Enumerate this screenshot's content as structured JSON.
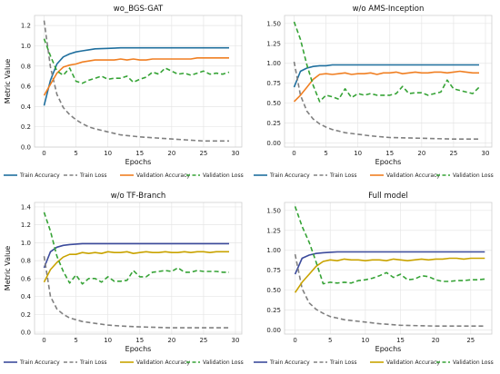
{
  "figure": {
    "legend": [
      "Train Accuracy",
      "Train Loss",
      "Validation Accuracy",
      "Validation Loss"
    ]
  },
  "chart_data": [
    {
      "type": "line",
      "title": "wo_BGS-GAT",
      "xlabel": "Epochs",
      "ylabel": "Metric Value",
      "xlim": [
        -1.5,
        31
      ],
      "ylim": [
        0.0,
        1.3
      ],
      "xticks": [
        0,
        5,
        10,
        15,
        20,
        25,
        30
      ],
      "yticks": [
        0.0,
        0.2,
        0.4,
        0.6,
        0.8,
        1.0,
        1.2
      ],
      "grid": true,
      "legend_position": "bottom",
      "colors": {
        "Train Accuracy": "#1f6f9e",
        "Train Loss": "#808080",
        "Validation Accuracy": "#f07f22",
        "Validation Loss": "#36a336"
      },
      "series": [
        {
          "name": "Train Accuracy",
          "style": "solid",
          "x": [
            0,
            1,
            2,
            3,
            4,
            5,
            6,
            7,
            8,
            10,
            12,
            15,
            20,
            25,
            29
          ],
          "y": [
            0.41,
            0.66,
            0.82,
            0.89,
            0.92,
            0.94,
            0.95,
            0.96,
            0.97,
            0.975,
            0.98,
            0.98,
            0.98,
            0.98,
            0.98
          ]
        },
        {
          "name": "Train Loss",
          "style": "dashed",
          "x": [
            0,
            1,
            2,
            3,
            4,
            5,
            6,
            7,
            8,
            10,
            12,
            15,
            20,
            25,
            29
          ],
          "y": [
            1.25,
            0.79,
            0.52,
            0.39,
            0.32,
            0.27,
            0.23,
            0.2,
            0.18,
            0.15,
            0.12,
            0.1,
            0.08,
            0.06,
            0.06
          ]
        },
        {
          "name": "Validation Accuracy",
          "style": "solid",
          "x": [
            0,
            1,
            2,
            3,
            4,
            5,
            6,
            7,
            8,
            9,
            10,
            11,
            12,
            13,
            14,
            15,
            16,
            17,
            18,
            19,
            20,
            21,
            22,
            23,
            24,
            25,
            26,
            27,
            28,
            29
          ],
          "y": [
            0.51,
            0.62,
            0.73,
            0.79,
            0.81,
            0.82,
            0.84,
            0.85,
            0.86,
            0.86,
            0.86,
            0.86,
            0.87,
            0.86,
            0.87,
            0.86,
            0.86,
            0.87,
            0.87,
            0.87,
            0.87,
            0.87,
            0.87,
            0.87,
            0.88,
            0.88,
            0.88,
            0.88,
            0.88,
            0.88
          ]
        },
        {
          "name": "Validation Loss",
          "style": "dashed",
          "x": [
            0,
            1,
            2,
            3,
            4,
            5,
            6,
            7,
            8,
            9,
            10,
            11,
            12,
            13,
            14,
            15,
            16,
            17,
            18,
            19,
            20,
            21,
            22,
            23,
            24,
            25,
            26,
            27,
            28,
            29
          ],
          "y": [
            1.07,
            0.9,
            0.75,
            0.71,
            0.78,
            0.65,
            0.63,
            0.66,
            0.68,
            0.7,
            0.67,
            0.68,
            0.68,
            0.7,
            0.64,
            0.67,
            0.69,
            0.74,
            0.72,
            0.78,
            0.75,
            0.72,
            0.73,
            0.71,
            0.73,
            0.75,
            0.72,
            0.73,
            0.72,
            0.74
          ]
        }
      ]
    },
    {
      "type": "line",
      "title": "w/o AMS-Inception",
      "xlabel": "Epochs",
      "ylabel": "",
      "xlim": [
        -1.5,
        31
      ],
      "ylim": [
        -0.05,
        1.6
      ],
      "xticks": [
        0,
        5,
        10,
        15,
        20,
        25,
        30
      ],
      "yticks": [
        0.0,
        0.25,
        0.5,
        0.75,
        1.0,
        1.25,
        1.5
      ],
      "grid": true,
      "legend_position": "bottom",
      "colors": {
        "Train Accuracy": "#1f6f9e",
        "Train Loss": "#808080",
        "Validation Accuracy": "#f07f22",
        "Validation Loss": "#36a336"
      },
      "series": [
        {
          "name": "Train Accuracy",
          "style": "solid",
          "x": [
            0,
            1,
            2,
            3,
            4,
            5,
            6,
            8,
            10,
            15,
            20,
            25,
            29
          ],
          "y": [
            0.7,
            0.9,
            0.94,
            0.96,
            0.97,
            0.97,
            0.98,
            0.98,
            0.98,
            0.98,
            0.98,
            0.98,
            0.98
          ]
        },
        {
          "name": "Train Loss",
          "style": "dashed",
          "x": [
            0,
            1,
            2,
            3,
            4,
            5,
            6,
            7,
            8,
            10,
            12,
            15,
            20,
            25,
            29
          ],
          "y": [
            1.02,
            0.6,
            0.4,
            0.3,
            0.24,
            0.2,
            0.17,
            0.15,
            0.13,
            0.11,
            0.09,
            0.07,
            0.06,
            0.05,
            0.05
          ]
        },
        {
          "name": "Validation Accuracy",
          "style": "solid",
          "x": [
            0,
            1,
            2,
            3,
            4,
            5,
            6,
            7,
            8,
            9,
            10,
            11,
            12,
            13,
            14,
            15,
            16,
            17,
            18,
            19,
            20,
            21,
            22,
            23,
            24,
            25,
            26,
            27,
            28,
            29
          ],
          "y": [
            0.52,
            0.6,
            0.7,
            0.8,
            0.86,
            0.87,
            0.86,
            0.87,
            0.88,
            0.86,
            0.87,
            0.87,
            0.88,
            0.86,
            0.88,
            0.88,
            0.89,
            0.87,
            0.88,
            0.89,
            0.88,
            0.88,
            0.89,
            0.89,
            0.88,
            0.89,
            0.9,
            0.89,
            0.88,
            0.88
          ]
        },
        {
          "name": "Validation Loss",
          "style": "dashed",
          "x": [
            0,
            1,
            2,
            3,
            4,
            5,
            6,
            7,
            8,
            9,
            10,
            11,
            12,
            13,
            14,
            15,
            16,
            17,
            18,
            19,
            20,
            21,
            22,
            23,
            24,
            25,
            26,
            27,
            28,
            29
          ],
          "y": [
            1.52,
            1.3,
            0.98,
            0.72,
            0.52,
            0.6,
            0.58,
            0.55,
            0.68,
            0.57,
            0.62,
            0.6,
            0.62,
            0.6,
            0.6,
            0.6,
            0.62,
            0.71,
            0.62,
            0.63,
            0.63,
            0.6,
            0.62,
            0.64,
            0.79,
            0.68,
            0.66,
            0.64,
            0.62,
            0.7
          ]
        }
      ]
    },
    {
      "type": "line",
      "title": "w/o TF-Branch",
      "xlabel": "Epochs",
      "ylabel": "Metric Value",
      "xlim": [
        -1.5,
        31
      ],
      "ylim": [
        -0.02,
        1.45
      ],
      "xticks": [
        0,
        5,
        10,
        15,
        20,
        25,
        30
      ],
      "yticks": [
        0.0,
        0.2,
        0.4,
        0.6,
        0.8,
        1.0,
        1.2,
        1.4
      ],
      "grid": true,
      "legend_position": "bottom",
      "colors": {
        "Train Accuracy": "#3c4b9c",
        "Train Loss": "#808080",
        "Validation Accuracy": "#c9a300",
        "Validation Loss": "#36a336"
      },
      "series": [
        {
          "name": "Train Accuracy",
          "style": "solid",
          "x": [
            0,
            1,
            2,
            3,
            4,
            5,
            6,
            8,
            10,
            15,
            20,
            25,
            29
          ],
          "y": [
            0.72,
            0.9,
            0.95,
            0.97,
            0.98,
            0.985,
            0.99,
            0.99,
            0.99,
            0.99,
            0.99,
            0.99,
            0.99
          ]
        },
        {
          "name": "Train Loss",
          "style": "dashed",
          "x": [
            0,
            1,
            2,
            3,
            4,
            5,
            6,
            7,
            8,
            10,
            12,
            15,
            20,
            25,
            29
          ],
          "y": [
            0.85,
            0.4,
            0.26,
            0.2,
            0.16,
            0.14,
            0.12,
            0.11,
            0.1,
            0.08,
            0.07,
            0.06,
            0.05,
            0.05,
            0.05
          ]
        },
        {
          "name": "Validation Accuracy",
          "style": "solid",
          "x": [
            0,
            1,
            2,
            3,
            4,
            5,
            6,
            7,
            8,
            9,
            10,
            11,
            12,
            13,
            14,
            15,
            16,
            17,
            18,
            19,
            20,
            21,
            22,
            23,
            24,
            25,
            26,
            27,
            28,
            29
          ],
          "y": [
            0.56,
            0.7,
            0.78,
            0.84,
            0.87,
            0.87,
            0.89,
            0.88,
            0.89,
            0.88,
            0.9,
            0.89,
            0.89,
            0.9,
            0.88,
            0.89,
            0.9,
            0.89,
            0.89,
            0.9,
            0.89,
            0.89,
            0.9,
            0.89,
            0.9,
            0.9,
            0.89,
            0.9,
            0.9,
            0.9
          ]
        },
        {
          "name": "Validation Loss",
          "style": "dashed",
          "x": [
            0,
            1,
            2,
            3,
            4,
            5,
            6,
            7,
            8,
            9,
            10,
            11,
            12,
            13,
            14,
            15,
            16,
            17,
            18,
            19,
            20,
            21,
            22,
            23,
            24,
            25,
            26,
            27,
            28,
            29
          ],
          "y": [
            1.34,
            1.13,
            0.85,
            0.68,
            0.55,
            0.64,
            0.54,
            0.6,
            0.6,
            0.56,
            0.62,
            0.57,
            0.57,
            0.58,
            0.69,
            0.62,
            0.62,
            0.67,
            0.68,
            0.69,
            0.68,
            0.72,
            0.67,
            0.67,
            0.69,
            0.68,
            0.68,
            0.68,
            0.67,
            0.67
          ]
        }
      ]
    },
    {
      "type": "line",
      "title": "Full model",
      "xlabel": "Epochs",
      "ylabel": "",
      "xlim": [
        -1.5,
        28
      ],
      "ylim": [
        -0.05,
        1.6
      ],
      "xticks": [
        0,
        5,
        10,
        15,
        20,
        25
      ],
      "yticks": [
        0.0,
        0.25,
        0.5,
        0.75,
        1.0,
        1.25,
        1.5
      ],
      "grid": true,
      "legend_position": "bottom",
      "colors": {
        "Train Accuracy": "#3c4b9c",
        "Train Loss": "#808080",
        "Validation Accuracy": "#c9a300",
        "Validation Loss": "#36a336"
      },
      "series": [
        {
          "name": "Train Accuracy",
          "style": "solid",
          "x": [
            0,
            1,
            2,
            3,
            4,
            5,
            6,
            8,
            10,
            15,
            20,
            25,
            27
          ],
          "y": [
            0.7,
            0.9,
            0.94,
            0.96,
            0.97,
            0.975,
            0.98,
            0.98,
            0.98,
            0.98,
            0.98,
            0.98,
            0.98
          ]
        },
        {
          "name": "Train Loss",
          "style": "dashed",
          "x": [
            0,
            1,
            2,
            3,
            4,
            5,
            6,
            7,
            8,
            10,
            12,
            15,
            20,
            25,
            27
          ],
          "y": [
            0.95,
            0.52,
            0.34,
            0.26,
            0.21,
            0.17,
            0.15,
            0.13,
            0.12,
            0.1,
            0.08,
            0.06,
            0.05,
            0.05,
            0.05
          ]
        },
        {
          "name": "Validation Accuracy",
          "style": "solid",
          "x": [
            0,
            1,
            2,
            3,
            4,
            5,
            6,
            7,
            8,
            9,
            10,
            11,
            12,
            13,
            14,
            15,
            16,
            17,
            18,
            19,
            20,
            21,
            22,
            23,
            24,
            25,
            26,
            27
          ],
          "y": [
            0.47,
            0.6,
            0.7,
            0.8,
            0.86,
            0.88,
            0.87,
            0.89,
            0.88,
            0.88,
            0.87,
            0.88,
            0.88,
            0.87,
            0.89,
            0.88,
            0.87,
            0.88,
            0.89,
            0.88,
            0.89,
            0.89,
            0.9,
            0.9,
            0.89,
            0.9,
            0.9,
            0.9
          ]
        },
        {
          "name": "Validation Loss",
          "style": "dashed",
          "x": [
            0,
            1,
            2,
            3,
            4,
            5,
            6,
            7,
            8,
            9,
            10,
            11,
            12,
            13,
            14,
            15,
            16,
            17,
            18,
            19,
            20,
            21,
            22,
            23,
            24,
            25,
            26,
            27
          ],
          "y": [
            1.55,
            1.3,
            1.1,
            0.85,
            0.58,
            0.6,
            0.59,
            0.6,
            0.59,
            0.62,
            0.63,
            0.65,
            0.68,
            0.72,
            0.66,
            0.7,
            0.63,
            0.64,
            0.68,
            0.67,
            0.63,
            0.61,
            0.61,
            0.62,
            0.62,
            0.63,
            0.63,
            0.64
          ]
        }
      ]
    }
  ]
}
